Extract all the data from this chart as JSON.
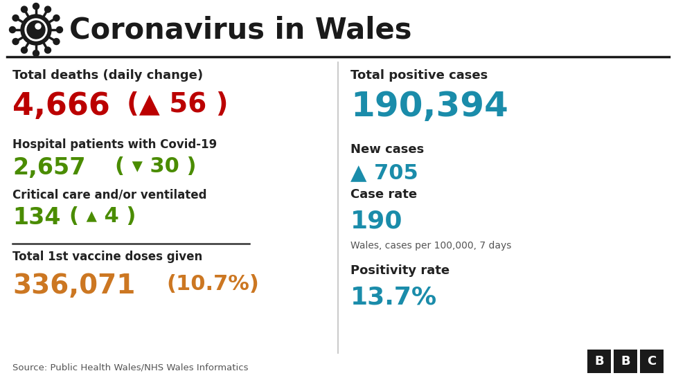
{
  "title": "Coronavirus in Wales",
  "bg_color": "#ffffff",
  "title_color": "#1a1a1a",
  "header_line_color": "#1a1a1a",
  "label_total_deaths": "Total deaths (daily change)",
  "val_deaths": "4,666",
  "val_deaths_change": "(▲ 56 )",
  "color_deaths": "#bb0000",
  "label_hospital": "Hospital patients with Covid-19",
  "val_hospital": "2,657",
  "val_hospital_change": "( ▾ 30 )",
  "color_hospital": "#4a8c00",
  "label_critical": "Critical care and/or ventilated",
  "val_critical": "134",
  "val_critical_change": "( ▴ 4 )",
  "color_critical": "#4a8c00",
  "label_vaccine": "Total 1st vaccine doses given",
  "val_vaccine": "336,071",
  "val_vaccine_pct": "(10.7%)",
  "color_vaccine": "#cc7722",
  "label_positive": "Total positive cases",
  "val_positive": "190,394",
  "color_positive": "#1a8caa",
  "label_new_cases": "New cases",
  "val_new_cases": "▲ 705",
  "color_new_cases": "#1a8caa",
  "label_case_rate": "Case rate",
  "val_case_rate": "190",
  "val_case_rate_sub": "Wales, cases per 100,000, 7 days",
  "color_case_rate": "#1a8caa",
  "label_positivity": "Positivity rate",
  "val_positivity": "13.7%",
  "color_positivity": "#1a8caa",
  "source_text": "Source: Public Health Wales/NHS Wales Informatics",
  "label_color": "#222222",
  "sublabel_color": "#555555"
}
